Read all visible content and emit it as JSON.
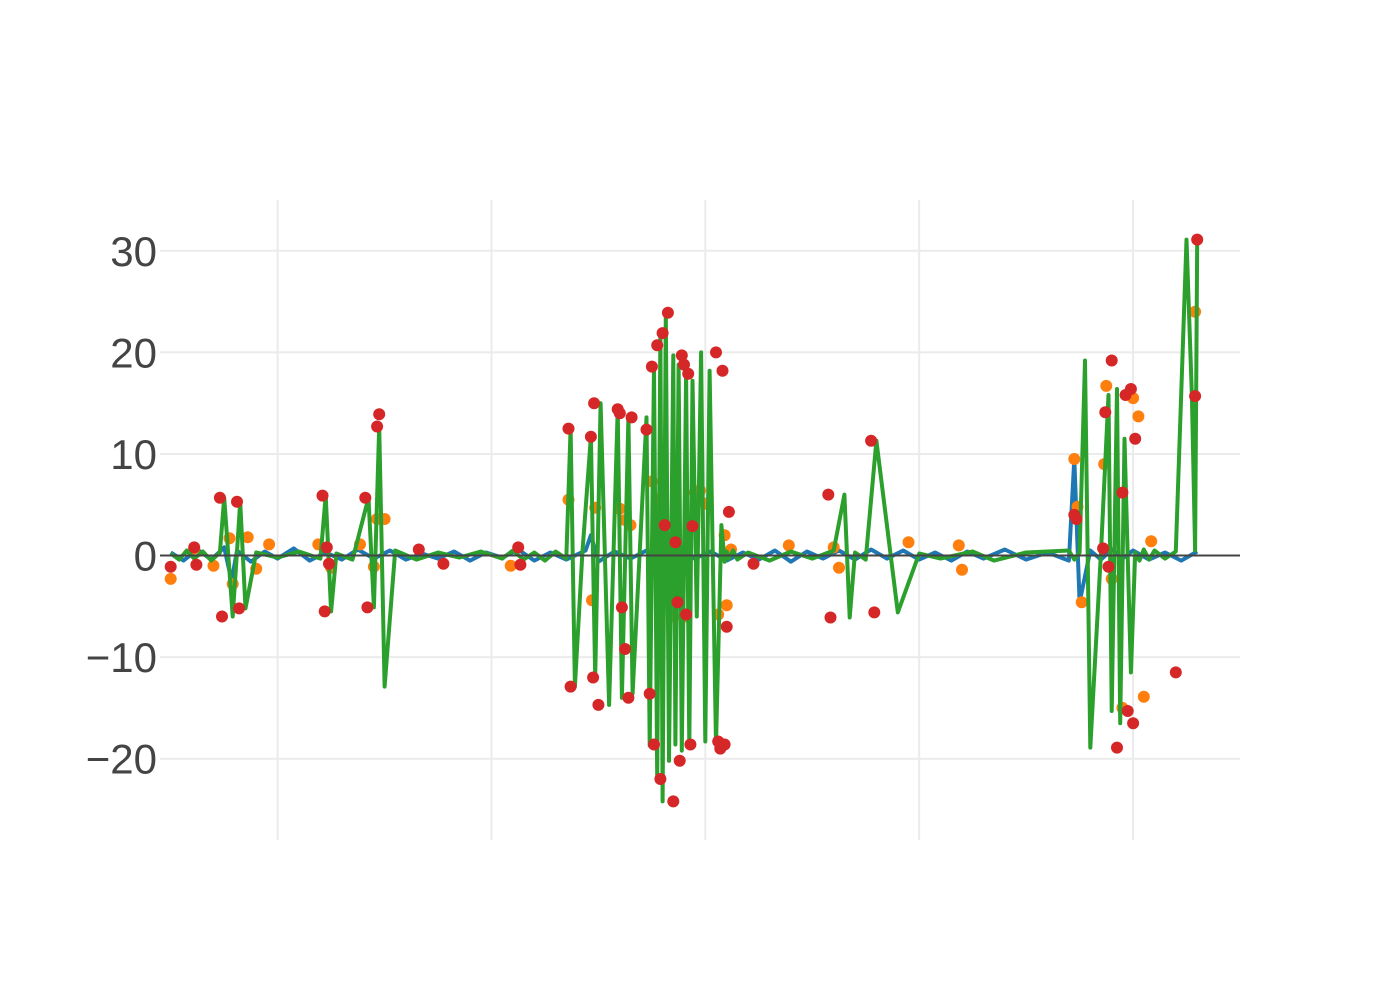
{
  "chart_data": {
    "type": "line",
    "title": "",
    "xlabel": "",
    "ylabel": "",
    "xlim": [
      -10,
      1000
    ],
    "ylim": [
      -28,
      35
    ],
    "yticks": [
      30,
      20,
      10,
      0,
      -10,
      -20
    ],
    "ytick_labels": [
      "30",
      "20",
      "10",
      "0",
      "−10",
      "−20"
    ],
    "xgrid": [
      100,
      300,
      500,
      700,
      900
    ],
    "grid": true,
    "legend": "none",
    "series": [
      {
        "color": "#1f77b4",
        "mode": "lines",
        "x": [
          0,
          12,
          25,
          38,
          50,
          57,
          62,
          75,
          88,
          100,
          115,
          130,
          145,
          160,
          175,
          190,
          205,
          220,
          235,
          250,
          265,
          280,
          295,
          310,
          325,
          340,
          355,
          370,
          388,
          393,
          400,
          415,
          430,
          445,
          460,
          475,
          490,
          505,
          520,
          535,
          550,
          565,
          580,
          595,
          610,
          625,
          640,
          655,
          670,
          685,
          700,
          715,
          730,
          745,
          760,
          780,
          800,
          820,
          840,
          845,
          850,
          860,
          870,
          880,
          890,
          900,
          915,
          930,
          945,
          960
        ],
        "y": [
          0.3,
          -0.5,
          0.6,
          -0.4,
          0.8,
          -2.5,
          0.5,
          -0.6,
          0.4,
          -0.3,
          0.7,
          -0.5,
          0.3,
          -0.4,
          0.6,
          -0.3,
          0.5,
          -0.4,
          0.2,
          -0.3,
          0.4,
          -0.5,
          0.3,
          -0.2,
          0.6,
          -0.5,
          0.3,
          -0.4,
          0.5,
          2.0,
          -0.6,
          0.4,
          -0.3,
          0.5,
          -0.4,
          0.6,
          -0.3,
          0.4,
          -0.5,
          0.3,
          -0.4,
          0.5,
          -0.6,
          0.4,
          -0.3,
          0.5,
          -0.4,
          0.6,
          -0.3,
          0.5,
          -0.4,
          0.3,
          -0.5,
          0.4,
          -0.3,
          0.6,
          -0.4,
          0.3,
          -0.5,
          9.5,
          -4.6,
          0.5,
          -0.4,
          0.6,
          -0.3,
          0.5,
          -0.4,
          0.3,
          -0.5,
          0.4
        ]
      },
      {
        "color": "#ff7f0e",
        "mode": "markers",
        "x": [
          0,
          22,
          40,
          55,
          58,
          72,
          80,
          92,
          138,
          150,
          177,
          190,
          193,
          200,
          318,
          372,
          394,
          397,
          420,
          425,
          430,
          450,
          455,
          460,
          470,
          480,
          490,
          495,
          500,
          512,
          518,
          520,
          524,
          578,
          620,
          625,
          690,
          737,
          740,
          845,
          848,
          852,
          873,
          875,
          880,
          890,
          900,
          905,
          910,
          917,
          958
        ],
        "y": [
          -2.3,
          0.7,
          -1.0,
          1.7,
          -2.8,
          1.8,
          -1.3,
          1.1,
          1.1,
          -1.2,
          1.1,
          -1.1,
          3.6,
          3.6,
          -1.0,
          5.5,
          -4.4,
          4.7,
          4.6,
          3.5,
          3.0,
          7.3,
          5.5,
          2.6,
          -6.0,
          -6.0,
          6.2,
          6.4,
          5.1,
          -5.8,
          2.0,
          -4.9,
          0.6,
          1.0,
          0.8,
          -1.2,
          1.3,
          1.0,
          -1.4,
          9.5,
          4.8,
          -4.6,
          9.0,
          16.7,
          -2.3,
          -15.0,
          15.5,
          13.7,
          -13.9,
          1.4,
          24.0
        ]
      },
      {
        "color": "#2ca02c",
        "mode": "lines",
        "x": [
          0,
          8,
          15,
          22,
          30,
          38,
          46,
          50,
          58,
          62,
          65,
          70,
          80,
          100,
          120,
          140,
          145,
          150,
          155,
          170,
          185,
          190,
          195,
          200,
          210,
          230,
          250,
          270,
          290,
          310,
          320,
          330,
          340,
          350,
          360,
          370,
          374,
          378,
          385,
          393,
          397,
          402,
          410,
          418,
          422,
          428,
          432,
          445,
          448,
          452,
          455,
          458,
          460,
          463,
          466,
          470,
          472,
          475,
          478,
          482,
          485,
          488,
          492,
          496,
          500,
          504,
          510,
          515,
          518,
          520,
          522,
          526,
          530,
          540,
          560,
          580,
          600,
          620,
          630,
          635,
          640,
          650,
          660,
          680,
          700,
          720,
          750,
          770,
          800,
          840,
          845,
          850,
          855,
          860,
          870,
          877,
          880,
          885,
          888,
          892,
          898,
          902,
          906,
          910,
          915,
          920,
          930,
          940,
          950,
          955,
          958,
          960
        ],
        "y": [
          0.2,
          -0.4,
          0.5,
          -0.3,
          0.4,
          -0.5,
          0.3,
          5.7,
          -6.0,
          0.4,
          5.3,
          -5.2,
          0.3,
          -0.2,
          0.4,
          -0.3,
          5.9,
          -5.5,
          0.2,
          -0.4,
          5.7,
          -5.1,
          12.7,
          -12.9,
          0.5,
          -0.4,
          0.3,
          -0.2,
          0.4,
          -0.3,
          0.5,
          -0.4,
          0.3,
          -0.5,
          0.4,
          -0.3,
          12.5,
          -12.9,
          0.3,
          11.7,
          -12.0,
          15.0,
          -14.7,
          14.4,
          -14.0,
          13.6,
          -13.6,
          13.6,
          -18.7,
          18.6,
          -22.0,
          21.9,
          -24.2,
          23.9,
          -20.2,
          19.7,
          -18.6,
          18.8,
          -19.2,
          17.9,
          -18.8,
          17.2,
          -6.0,
          20.0,
          -18.3,
          18.2,
          -18.6,
          3.0,
          -0.6,
          0.4,
          -0.3,
          0.5,
          -0.4,
          0.3,
          -0.5,
          0.4,
          -0.3,
          0.5,
          6.0,
          -6.1,
          0.3,
          -0.4,
          11.3,
          -5.6,
          0.2,
          -0.3,
          0.4,
          -0.5,
          0.3,
          0.5,
          -0.4,
          0.3,
          19.2,
          -18.9,
          0.4,
          15.8,
          -15.3,
          16.4,
          -16.5,
          11.5,
          -11.5,
          0.3,
          -0.5,
          0.6,
          -0.4,
          0.5,
          -0.3,
          0.4,
          31.1,
          15.7,
          0.5,
          31.1
        ]
      },
      {
        "color": "#d62728",
        "mode": "markers",
        "x": [
          0,
          22,
          24,
          46,
          48,
          62,
          64,
          142,
          144,
          146,
          148,
          182,
          184,
          193,
          195,
          232,
          255,
          325,
          327,
          372,
          374,
          393,
          395,
          396,
          400,
          418,
          420,
          422,
          425,
          428,
          431,
          445,
          448,
          450,
          452,
          455,
          458,
          460,
          462,
          465,
          470,
          472,
          474,
          476,
          478,
          480,
          482,
          484,
          486,
          488,
          510,
          512,
          514,
          516,
          518,
          520,
          522,
          545,
          615,
          617,
          655,
          658,
          845,
          847,
          872,
          874,
          877,
          880,
          885,
          890,
          893,
          895,
          898,
          900,
          902,
          940,
          958,
          960
        ],
        "y": [
          -1.1,
          0.8,
          -0.9,
          5.7,
          -6.0,
          5.3,
          -5.2,
          5.9,
          -5.5,
          0.8,
          -0.8,
          5.7,
          -5.1,
          12.7,
          13.9,
          0.6,
          -0.8,
          0.8,
          -0.9,
          12.5,
          -12.9,
          11.7,
          -12.0,
          15.0,
          -14.7,
          14.4,
          14.0,
          -5.1,
          -9.2,
          -14.0,
          13.6,
          12.4,
          -13.6,
          18.6,
          -18.6,
          20.7,
          -22.0,
          21.9,
          3.0,
          23.9,
          -24.2,
          1.3,
          -4.6,
          -20.2,
          19.7,
          18.8,
          -5.8,
          17.9,
          -18.6,
          2.9,
          20.0,
          -18.3,
          -19.0,
          18.2,
          -18.6,
          -7.0,
          4.3,
          -0.8,
          6.0,
          -6.1,
          11.3,
          -5.6,
          4.0,
          3.6,
          0.7,
          14.1,
          -1.1,
          19.2,
          -18.9,
          6.2,
          15.8,
          -15.3,
          16.4,
          -16.5,
          11.5,
          -11.5,
          15.7,
          31.1
        ]
      }
    ]
  }
}
